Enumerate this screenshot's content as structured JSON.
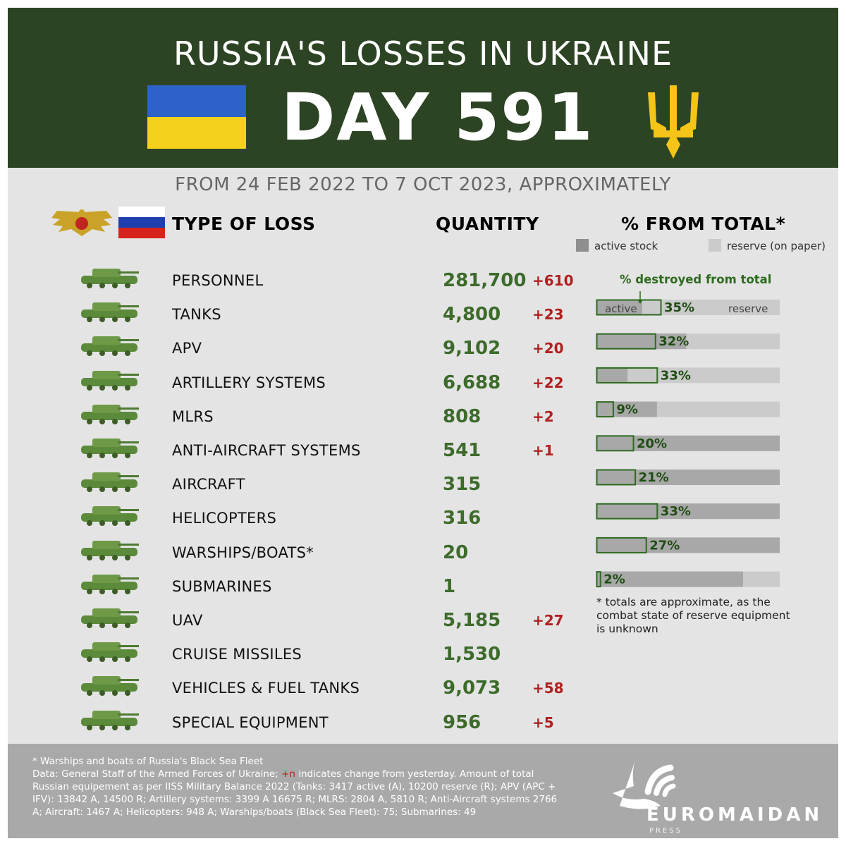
{
  "header": {
    "title": "RUSSIA'S LOSSES IN UKRAINE",
    "day": "DAY 591",
    "period": "FROM 24 FEB 2022 TO 7 OCT 2023, APPROXIMATELY"
  },
  "columns": {
    "type": "TYPE OF LOSS",
    "quantity": "QUANTITY",
    "percent": "% FROM TOTAL*"
  },
  "legend": {
    "active": "active stock",
    "reserve": "reserve (on paper)",
    "destroyed": "% destroyed from total",
    "bar_active": "active",
    "bar_reserve": "reserve"
  },
  "colors": {
    "header_bg": "#2d4424",
    "active": "#a8a8a8",
    "reserve": "#cbcbcb",
    "destroyed_outline": "#2e6a1f",
    "quantity": "#3d6b2b",
    "delta": "#b21f1f"
  },
  "rows": [
    {
      "label": "PERSONNEL",
      "quantity": "281,700",
      "delta": "+610",
      "icon": "soldiers-icon"
    },
    {
      "label": "TANKS",
      "quantity": "4,800",
      "delta": "+23",
      "icon": "tank-icon"
    },
    {
      "label": "APV",
      "quantity": "9,102",
      "delta": "+20",
      "icon": "apv-icon"
    },
    {
      "label": "ARTILLERY SYSTEMS",
      "quantity": "6,688",
      "delta": "+22",
      "icon": "artillery-icon"
    },
    {
      "label": "MLRS",
      "quantity": "808",
      "delta": "+2",
      "icon": "mlrs-icon"
    },
    {
      "label": "ANTI-AIRCRAFT SYSTEMS",
      "quantity": "541",
      "delta": "+1",
      "icon": "anti-aircraft-icon"
    },
    {
      "label": "AIRCRAFT",
      "quantity": "315",
      "delta": "",
      "icon": "aircraft-icon"
    },
    {
      "label": "HELICOPTERS",
      "quantity": "316",
      "delta": "",
      "icon": "helicopter-icon"
    },
    {
      "label": "WARSHIPS/BOATS*",
      "quantity": "20",
      "delta": "",
      "icon": "warship-icon"
    },
    {
      "label": "SUBMARINES",
      "quantity": "1",
      "delta": "",
      "icon": "submarine-icon"
    },
    {
      "label": "UAV",
      "quantity": "5,185",
      "delta": "+27",
      "icon": "uav-icon"
    },
    {
      "label": "CRUISE MISSILES",
      "quantity": "1,530",
      "delta": "",
      "icon": "missile-icon"
    },
    {
      "label": "VEHICLES & FUEL TANKS",
      "quantity": "9,073",
      "delta": "+58",
      "icon": "vehicles-icon"
    },
    {
      "label": "SPECIAL EQUIPMENT",
      "quantity": "956",
      "delta": "+5",
      "icon": "special-equipment-icon"
    }
  ],
  "chart_data": {
    "type": "bar",
    "categories": [
      "TANKS",
      "APV",
      "ARTILLERY SYSTEMS",
      "MLRS",
      "ANTI-AIRCRAFT SYSTEMS",
      "AIRCRAFT",
      "HELICOPTERS",
      "WARSHIPS/BOATS*",
      "SUBMARINES"
    ],
    "series": [
      {
        "name": "active stock",
        "values": [
          0.25,
          0.49,
          0.17,
          0.33,
          1.0,
          1.0,
          1.0,
          1.0,
          0.8
        ]
      },
      {
        "name": "% destroyed from total",
        "values": [
          35,
          32,
          33,
          9,
          20,
          21,
          33,
          27,
          2
        ]
      }
    ],
    "labels": [
      "35%",
      "32%",
      "33%",
      "9%",
      "20%",
      "21%",
      "33%",
      "27%",
      "2%"
    ],
    "ylim": [
      0,
      100
    ]
  },
  "note": "* totals are approximate, as the combat state of reserve equipment is unknown",
  "footer": {
    "line1": "* Warships and boats of Russia's Black Sea Fleet",
    "line2a": "Data: General Staff of the Armed Forces of Ukraine; ",
    "line2b": "+n",
    "line2c": " indicates change from yesterday. Amount of total Russian equipement as per IISS Military Balance 2022 (Tanks: 3417 active (A), 10200 reserve (R); APV (APC + IFV): 13842 A, 14500 R; Artillery systems: 3399 A 16675 R; MLRS: 2804 A, 5810 R; Anti-Aircraft systems 2766 A; Aircraft: 1467 A; Helicopters: 948 A; Warships/boats (Black Sea Fleet): 75; Submarines: 49",
    "logo": "EUROMAIDAN",
    "logo_sub": "PRESS"
  }
}
